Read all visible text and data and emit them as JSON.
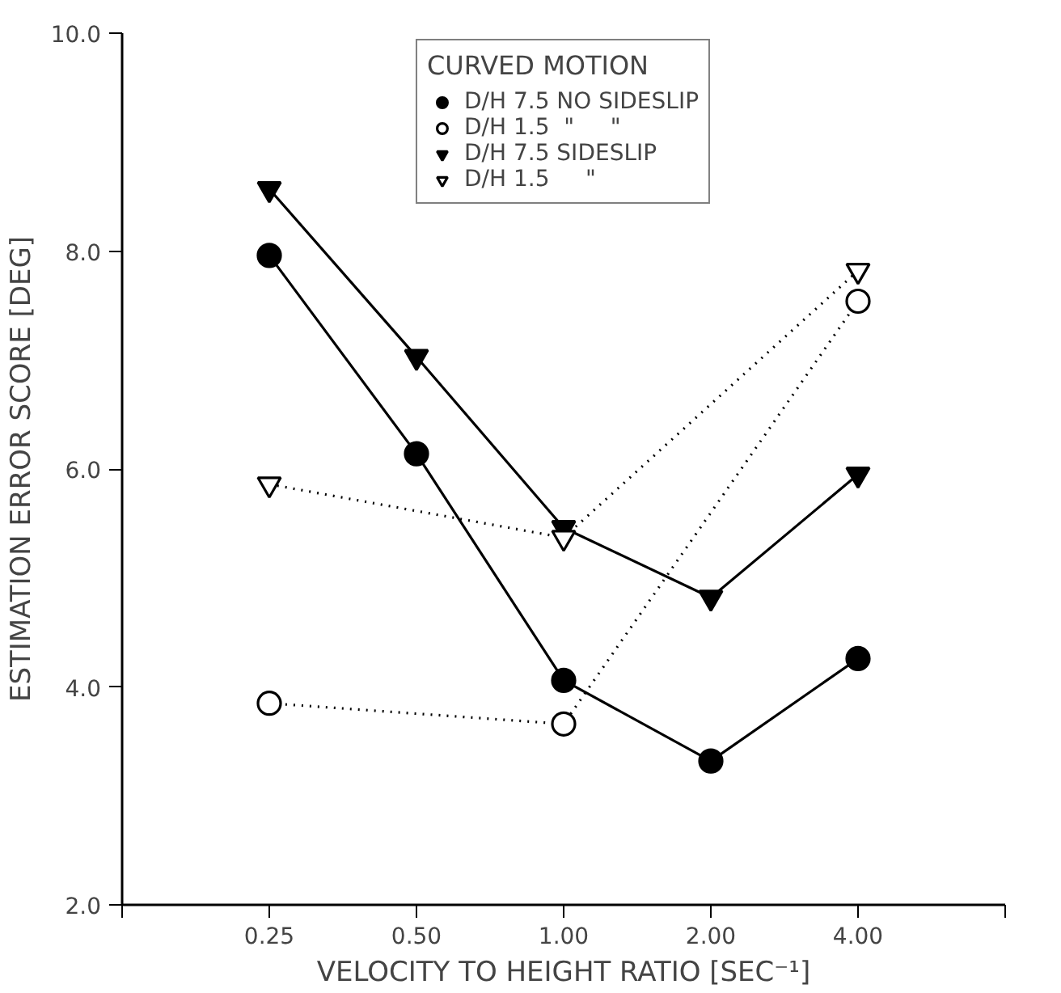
{
  "chart_data": {
    "type": "line",
    "xlabel": "VELOCITY TO HEIGHT RATIO [SEC⁻¹]",
    "ylabel": "ESTIMATION ERROR SCORE [DEG]",
    "legend_title": "CURVED MOTION",
    "categories": [
      null,
      "0.25",
      "0.50",
      "1.00",
      "2.00",
      "4.00",
      null
    ],
    "ylim": [
      2,
      10
    ],
    "yticks": [
      {
        "value": 2,
        "label": "2.0"
      },
      {
        "value": 4,
        "label": "4.0"
      },
      {
        "value": 6,
        "label": "6.0"
      },
      {
        "value": 8,
        "label": "8.0"
      },
      {
        "value": 10,
        "label": "10.0"
      }
    ],
    "grid": false,
    "legend": "top",
    "series": [
      {
        "name": "D/H 7.5 NO SIDESLIP",
        "color": "#000000",
        "marker": "circle",
        "line_style": "solid",
        "values": [
          null,
          7.96,
          6.14,
          4.06,
          3.32,
          4.26,
          null
        ]
      },
      {
        "name": "D/H 1.5  \"     \"",
        "color": "#000000",
        "marker": "circle",
        "line_style": "dotted",
        "values": [
          null,
          3.85,
          null,
          3.66,
          null,
          7.54,
          null
        ]
      },
      {
        "name": "D/H 7.5 SIDESLIP",
        "color": "#000000",
        "marker": "triangle",
        "line_style": "solid",
        "values": [
          null,
          8.57,
          7.03,
          5.46,
          4.82,
          5.95,
          null
        ]
      },
      {
        "name": "D/H 1.5     \"",
        "color": "#000000",
        "marker": "triangle",
        "line_style": "dotted",
        "values": [
          null,
          5.86,
          null,
          5.37,
          null,
          7.82,
          null
        ]
      }
    ]
  }
}
